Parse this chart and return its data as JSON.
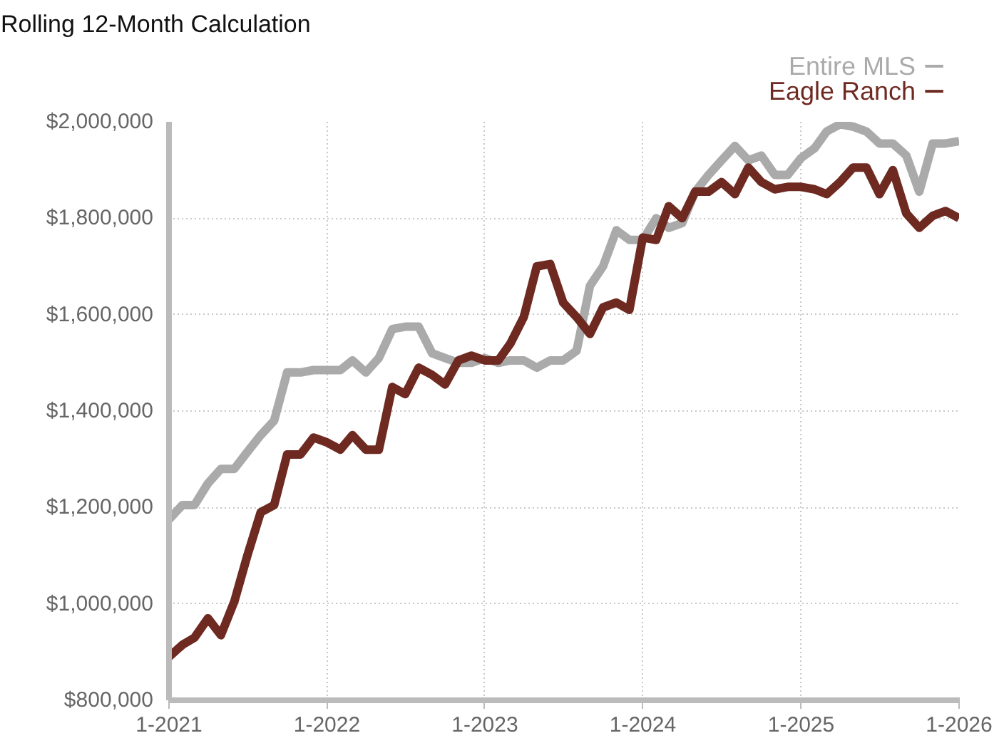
{
  "chart_data": {
    "type": "line",
    "title": "Rolling 12-Month Calculation",
    "x": [
      "2021-01",
      "2021-02",
      "2021-03",
      "2021-04",
      "2021-05",
      "2021-06",
      "2021-07",
      "2021-08",
      "2021-09",
      "2021-10",
      "2021-11",
      "2021-12",
      "2022-01",
      "2022-02",
      "2022-03",
      "2022-04",
      "2022-05",
      "2022-06",
      "2022-07",
      "2022-08",
      "2022-09",
      "2022-10",
      "2022-11",
      "2022-12",
      "2023-01",
      "2023-02",
      "2023-03",
      "2023-04",
      "2023-05",
      "2023-06",
      "2023-07",
      "2023-08",
      "2023-09",
      "2023-10",
      "2023-11",
      "2023-12",
      "2024-01",
      "2024-02",
      "2024-03",
      "2024-04",
      "2024-05",
      "2024-06",
      "2024-07",
      "2024-08",
      "2024-09",
      "2024-10",
      "2024-11",
      "2024-12",
      "2025-01",
      "2025-02",
      "2025-03",
      "2025-04",
      "2025-05",
      "2025-06",
      "2025-07",
      "2025-08",
      "2025-09",
      "2025-10",
      "2025-11",
      "2025-12",
      "2026-01"
    ],
    "series": [
      {
        "name": "Entire MLS",
        "color": "#aaaaaa",
        "values": [
          1175000,
          1205000,
          1205000,
          1250000,
          1280000,
          1280000,
          1315000,
          1350000,
          1380000,
          1480000,
          1480000,
          1485000,
          1485000,
          1485000,
          1505000,
          1480000,
          1510000,
          1570000,
          1575000,
          1575000,
          1520000,
          1510000,
          1500000,
          1500000,
          1510000,
          1500000,
          1505000,
          1505000,
          1490000,
          1505000,
          1505000,
          1525000,
          1660000,
          1700000,
          1775000,
          1755000,
          1755000,
          1800000,
          1780000,
          1790000,
          1855000,
          1890000,
          1920000,
          1950000,
          1920000,
          1930000,
          1890000,
          1890000,
          1925000,
          1945000,
          1980000,
          1995000,
          1990000,
          1980000,
          1955000,
          1955000,
          1930000,
          1855000,
          1955000,
          1955000,
          1960000
        ]
      },
      {
        "name": "Eagle Ranch",
        "color": "#6e2a21",
        "values": [
          890000,
          915000,
          930000,
          970000,
          935000,
          1005000,
          1100000,
          1190000,
          1205000,
          1310000,
          1310000,
          1345000,
          1335000,
          1320000,
          1350000,
          1320000,
          1320000,
          1450000,
          1435000,
          1490000,
          1475000,
          1455000,
          1505000,
          1515000,
          1505000,
          1505000,
          1540000,
          1595000,
          1700000,
          1705000,
          1625000,
          1595000,
          1560000,
          1615000,
          1625000,
          1610000,
          1760000,
          1755000,
          1825000,
          1800000,
          1855000,
          1855000,
          1875000,
          1850000,
          1905000,
          1875000,
          1860000,
          1865000,
          1865000,
          1860000,
          1850000,
          1875000,
          1905000,
          1905000,
          1850000,
          1900000,
          1810000,
          1780000,
          1805000,
          1815000,
          1800000
        ]
      }
    ],
    "xlim": [
      "2021-01",
      "2026-01"
    ],
    "xticks": [
      {
        "value": "2021-01",
        "label": "1-2021"
      },
      {
        "value": "2022-01",
        "label": "1-2022"
      },
      {
        "value": "2023-01",
        "label": "1-2023"
      },
      {
        "value": "2024-01",
        "label": "1-2024"
      },
      {
        "value": "2025-01",
        "label": "1-2025"
      },
      {
        "value": "2026-01",
        "label": "1-2026"
      }
    ],
    "ylim": [
      800000,
      2000000
    ],
    "yticks": [
      {
        "value": 800000,
        "label": "$800,000"
      },
      {
        "value": 1000000,
        "label": "$1,000,000"
      },
      {
        "value": 1200000,
        "label": "$1,200,000"
      },
      {
        "value": 1400000,
        "label": "$1,400,000"
      },
      {
        "value": 1600000,
        "label": "$1,600,000"
      },
      {
        "value": 1800000,
        "label": "$1,800,000"
      },
      {
        "value": 2000000,
        "label": "$2,000,000"
      }
    ],
    "grid": true,
    "legend": "top right",
    "line_style": "solid",
    "marker": "none"
  }
}
